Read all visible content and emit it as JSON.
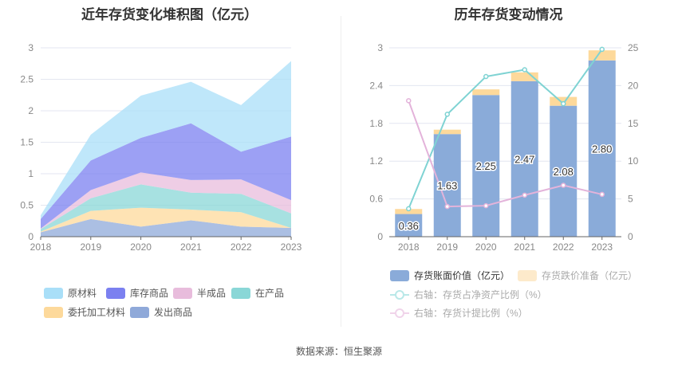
{
  "chart_data": [
    {
      "type": "area",
      "stacked": true,
      "title": "近年存货变化堆积图（亿元）",
      "categories": [
        "2018",
        "2019",
        "2020",
        "2021",
        "2022",
        "2023"
      ],
      "ylim": [
        0,
        3
      ],
      "yticks": [
        "0",
        "0.5",
        "1",
        "1.5",
        "2",
        "2.5",
        "3"
      ],
      "grid": true,
      "legend": "bottom",
      "series": [
        {
          "name": "发出商品",
          "color": "#8fa9d9",
          "values": [
            0.07,
            0.28,
            0.16,
            0.26,
            0.16,
            0.14
          ]
        },
        {
          "name": "委托加工材料",
          "color": "#fdd99b",
          "values": [
            0.01,
            0.13,
            0.3,
            0.17,
            0.23,
            0.0
          ]
        },
        {
          "name": "在产品",
          "color": "#8ad7d7",
          "values": [
            0.04,
            0.2,
            0.37,
            0.27,
            0.29,
            0.23
          ]
        },
        {
          "name": "半成品",
          "color": "#e8bcdc",
          "values": [
            0.01,
            0.13,
            0.19,
            0.2,
            0.23,
            0.21
          ]
        },
        {
          "name": "库存商品",
          "color": "#7b80f0",
          "values": [
            0.15,
            0.47,
            0.55,
            0.9,
            0.44,
            1.01
          ]
        },
        {
          "name": "原材料",
          "color": "#a9dff8",
          "values": [
            0.06,
            0.41,
            0.67,
            0.66,
            0.74,
            1.2
          ]
        }
      ]
    },
    {
      "type": "bar",
      "stacked": true,
      "title": "历年存货变动情况",
      "categories": [
        "2018",
        "2019",
        "2020",
        "2021",
        "2022",
        "2023"
      ],
      "ylim": [
        0,
        3
      ],
      "yticks": [
        "0",
        "0.6",
        "1.2",
        "1.8",
        "2.4",
        "3"
      ],
      "y2lim": [
        0,
        25
      ],
      "y2ticks": [
        "0",
        "5",
        "10",
        "15",
        "20",
        "25"
      ],
      "grid": true,
      "legend": "bottom",
      "series": [
        {
          "name": "存货账面价值（亿元）",
          "color": "#8aabd9",
          "values": [
            0.36,
            1.63,
            2.25,
            2.47,
            2.08,
            2.8
          ],
          "labels": [
            "0.36",
            "1.63",
            "2.25",
            "2.47",
            "2.08",
            "2.80"
          ]
        },
        {
          "name": "存货跌价准备（亿元）",
          "color": "#fdd99b",
          "values": [
            0.08,
            0.07,
            0.09,
            0.14,
            0.14,
            0.16
          ]
        },
        {
          "name": "右轴：存货占净资产比例（%）",
          "type": "line",
          "axis": "right",
          "color": "#7fd3d3",
          "values": [
            3.7,
            16.2,
            21.2,
            22.1,
            17.6,
            24.8
          ]
        },
        {
          "name": "右轴：存货计提比例（%）",
          "type": "line",
          "axis": "right",
          "color": "#e3b3da",
          "values": [
            18.0,
            4.0,
            4.1,
            5.5,
            6.8,
            5.6
          ]
        }
      ]
    }
  ],
  "source": "数据来源：恒生聚源"
}
